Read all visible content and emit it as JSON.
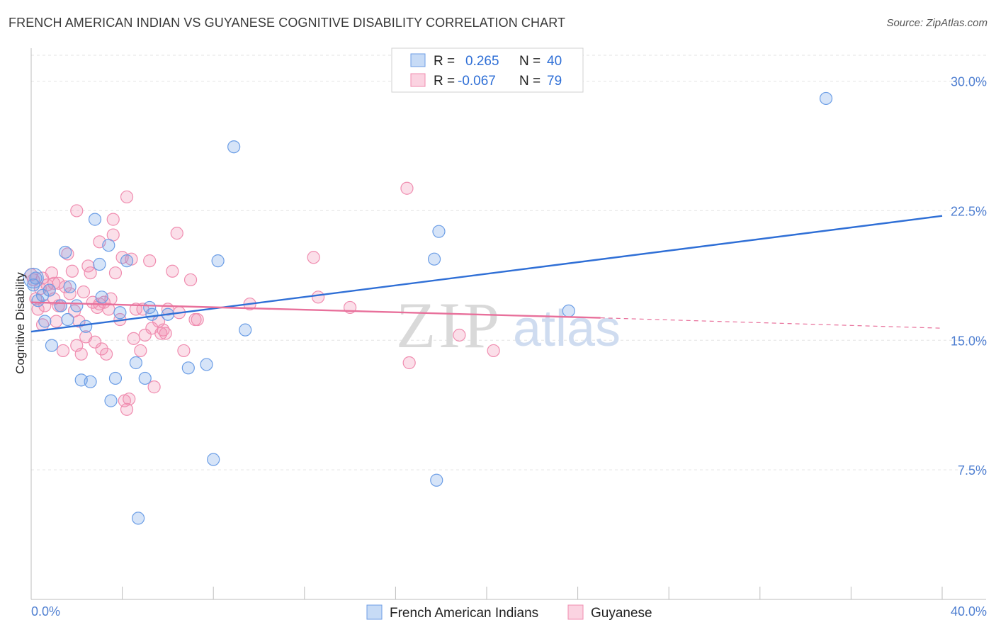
{
  "title": "FRENCH AMERICAN INDIAN VS GUYANESE COGNITIVE DISABILITY CORRELATION CHART",
  "source": "Source: ZipAtlas.com",
  "watermark": {
    "zip": "ZIP",
    "atlas": "atlas"
  },
  "legend": {
    "r_label": "R =",
    "n_label": "N =",
    "rows": [
      {
        "r_value": "0.265",
        "n_value": "40",
        "color": "#6c9ee6"
      },
      {
        "r_value": "-0.067",
        "n_value": "79",
        "color": "#f08db0"
      }
    ]
  },
  "chart_data": {
    "type": "scatter",
    "title": "FRENCH AMERICAN INDIAN VS GUYANESE COGNITIVE DISABILITY CORRELATION CHART",
    "ylabel": "Cognitive Disability",
    "xlabel": "",
    "xlim": [
      0,
      40
    ],
    "ylim": [
      0,
      31.5
    ],
    "x_tick_labels": [
      "0.0%",
      "40.0%"
    ],
    "y_ticks": [
      7.5,
      15.0,
      22.5,
      30.0
    ],
    "y_tick_labels": [
      "7.5%",
      "15.0%",
      "22.5%",
      "30.0%"
    ],
    "series": [
      {
        "name": "French American Indians",
        "color": "#6c9ee6",
        "trend": {
          "x": [
            0,
            40
          ],
          "y": [
            15.5,
            22.2
          ],
          "style": "solid"
        },
        "points": [
          [
            0.2,
            18.6
          ],
          [
            0.3,
            17.3
          ],
          [
            0.5,
            17.6
          ],
          [
            0.6,
            16.1
          ],
          [
            0.8,
            17.9
          ],
          [
            0.9,
            14.7
          ],
          [
            1.3,
            17.0
          ],
          [
            1.5,
            20.1
          ],
          [
            1.6,
            16.2
          ],
          [
            1.7,
            18.1
          ],
          [
            2.0,
            17.0
          ],
          [
            2.2,
            12.7
          ],
          [
            2.4,
            15.8
          ],
          [
            2.6,
            12.6
          ],
          [
            2.8,
            22.0
          ],
          [
            3.0,
            19.4
          ],
          [
            3.1,
            17.5
          ],
          [
            3.4,
            20.5
          ],
          [
            3.5,
            11.5
          ],
          [
            3.7,
            12.8
          ],
          [
            3.9,
            16.6
          ],
          [
            4.2,
            19.6
          ],
          [
            4.6,
            13.7
          ],
          [
            4.7,
            4.7
          ],
          [
            5.0,
            12.8
          ],
          [
            5.2,
            16.9
          ],
          [
            5.3,
            16.5
          ],
          [
            6.0,
            16.5
          ],
          [
            6.9,
            13.4
          ],
          [
            7.7,
            13.6
          ],
          [
            8.2,
            19.6
          ],
          [
            8.9,
            26.2
          ],
          [
            9.4,
            15.6
          ],
          [
            17.7,
            19.7
          ],
          [
            17.8,
            6.9
          ],
          [
            17.9,
            21.3
          ],
          [
            23.6,
            16.7
          ],
          [
            34.9,
            29.0
          ],
          [
            0.1,
            18.2
          ],
          [
            8.0,
            8.1
          ]
        ]
      },
      {
        "name": "Guyanese",
        "color": "#f08db0",
        "trend": {
          "x": [
            0,
            25.0
          ],
          "y": [
            17.2,
            16.3
          ],
          "style": "solid",
          "extended": {
            "x": [
              25.0,
              40
            ],
            "y": [
              16.3,
              15.7
            ],
            "style": "dashed"
          }
        },
        "points": [
          [
            0.1,
            18.5
          ],
          [
            0.2,
            17.4
          ],
          [
            0.3,
            16.8
          ],
          [
            0.4,
            18.0
          ],
          [
            0.5,
            15.9
          ],
          [
            0.6,
            17.0
          ],
          [
            0.7,
            18.2
          ],
          [
            0.8,
            17.9
          ],
          [
            0.9,
            18.9
          ],
          [
            1.0,
            18.3
          ],
          [
            1.1,
            16.1
          ],
          [
            1.2,
            18.3
          ],
          [
            1.3,
            17.0
          ],
          [
            1.4,
            14.4
          ],
          [
            1.5,
            18.1
          ],
          [
            1.6,
            20.0
          ],
          [
            1.7,
            17.7
          ],
          [
            1.8,
            19.0
          ],
          [
            1.9,
            16.7
          ],
          [
            2.0,
            14.7
          ],
          [
            2.1,
            16.1
          ],
          [
            2.2,
            14.2
          ],
          [
            2.3,
            17.8
          ],
          [
            2.4,
            15.2
          ],
          [
            2.5,
            19.3
          ],
          [
            2.6,
            18.9
          ],
          [
            2.7,
            17.2
          ],
          [
            2.8,
            14.9
          ],
          [
            2.9,
            16.9
          ],
          [
            3.0,
            20.7
          ],
          [
            3.1,
            14.5
          ],
          [
            3.2,
            17.2
          ],
          [
            3.3,
            14.2
          ],
          [
            3.4,
            16.8
          ],
          [
            3.5,
            17.4
          ],
          [
            3.6,
            21.1
          ],
          [
            3.7,
            18.9
          ],
          [
            3.9,
            16.2
          ],
          [
            4.0,
            19.8
          ],
          [
            4.1,
            11.5
          ],
          [
            4.2,
            11.0
          ],
          [
            4.3,
            11.6
          ],
          [
            4.4,
            19.7
          ],
          [
            4.5,
            15.1
          ],
          [
            4.6,
            16.8
          ],
          [
            4.8,
            14.4
          ],
          [
            5.0,
            15.3
          ],
          [
            5.2,
            19.6
          ],
          [
            5.3,
            15.7
          ],
          [
            5.4,
            12.3
          ],
          [
            5.6,
            16.1
          ],
          [
            5.7,
            15.4
          ],
          [
            5.9,
            15.4
          ],
          [
            6.0,
            16.8
          ],
          [
            6.2,
            19.0
          ],
          [
            6.4,
            21.2
          ],
          [
            6.5,
            16.6
          ],
          [
            6.7,
            14.4
          ],
          [
            7.0,
            18.5
          ],
          [
            7.2,
            16.2
          ],
          [
            9.6,
            17.1
          ],
          [
            12.4,
            19.8
          ],
          [
            12.6,
            17.5
          ],
          [
            14.0,
            16.9
          ],
          [
            16.5,
            23.8
          ],
          [
            16.6,
            13.7
          ],
          [
            18.8,
            15.3
          ],
          [
            20.3,
            14.4
          ],
          [
            4.2,
            23.3
          ],
          [
            3.6,
            22.0
          ],
          [
            2.0,
            22.5
          ],
          [
            0.5,
            18.6
          ],
          [
            0.0,
            18.8
          ],
          [
            1.0,
            17.4
          ],
          [
            1.2,
            17.0
          ],
          [
            3.0,
            17.1
          ],
          [
            5.8,
            15.6
          ],
          [
            7.3,
            16.2
          ],
          [
            4.9,
            16.8
          ]
        ]
      }
    ]
  },
  "bottom_legend": [
    {
      "label": "French American Indians",
      "color": "#6c9ee6"
    },
    {
      "label": "Guyanese",
      "color": "#f08db0"
    }
  ]
}
